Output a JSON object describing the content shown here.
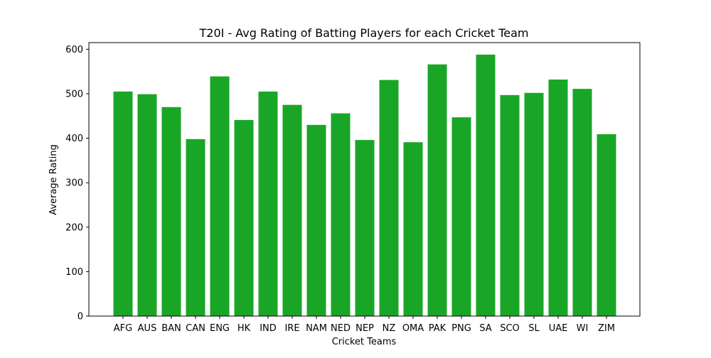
{
  "chart_data": {
    "type": "bar",
    "title": "T20I - Avg Rating of Batting Players for each Cricket Team",
    "xlabel": "Cricket Teams",
    "ylabel": "Average Rating",
    "categories": [
      "AFG",
      "AUS",
      "BAN",
      "CAN",
      "ENG",
      "HK",
      "IND",
      "IRE",
      "NAM",
      "NED",
      "NEP",
      "NZ",
      "OMA",
      "PAK",
      "PNG",
      "SA",
      "SCO",
      "SL",
      "UAE",
      "WI",
      "ZIM"
    ],
    "values": [
      505,
      499,
      470,
      398,
      539,
      441,
      505,
      475,
      430,
      456,
      396,
      531,
      391,
      566,
      447,
      588,
      497,
      502,
      532,
      511,
      409
    ],
    "ylim": [
      0,
      615
    ],
    "yticks": [
      0,
      100,
      200,
      300,
      400,
      500,
      600
    ],
    "bar_color": "#19a626",
    "grid": false,
    "legend": "none"
  }
}
